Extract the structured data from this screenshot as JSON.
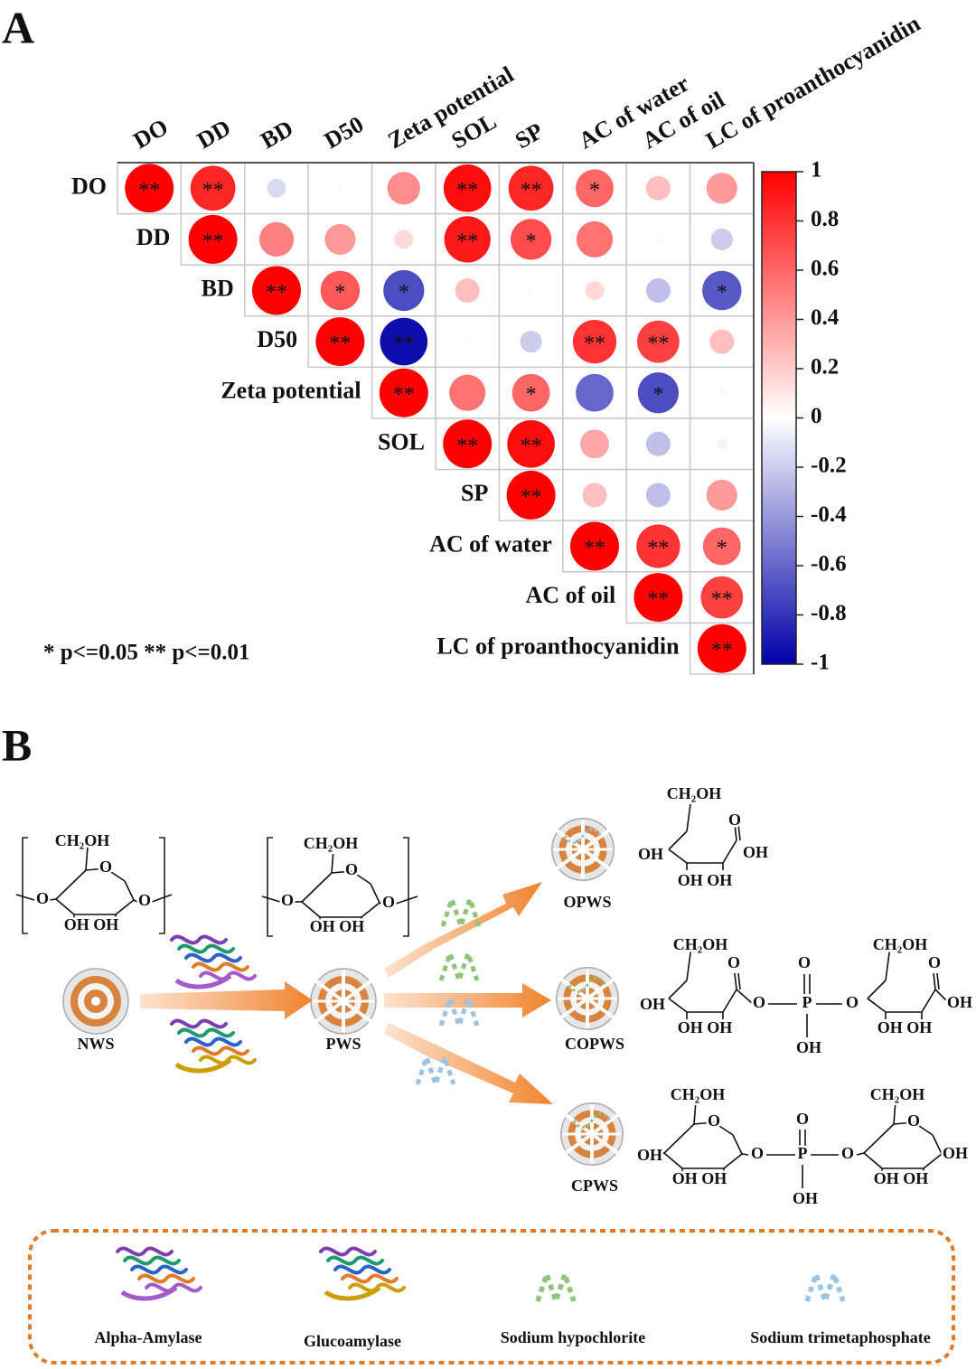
{
  "panel_labels": [
    "A",
    "B"
  ],
  "chart_data": {
    "type": "corrplot",
    "categories": [
      "DO",
      "DD",
      "BD",
      "D50",
      "Zeta potential",
      "SOL",
      "SP",
      "AC of water",
      "AC of oil",
      "LC of proanthocyanidin"
    ],
    "values": [
      [
        1,
        0.85,
        -0.15,
        0.02,
        0.45,
        0.95,
        0.85,
        0.6,
        0.25,
        0.4
      ],
      [
        null,
        1,
        0.5,
        0.4,
        0.15,
        0.9,
        0.7,
        0.55,
        0.02,
        -0.2
      ],
      [
        null,
        null,
        1,
        0.65,
        -0.7,
        0.25,
        0.02,
        0.15,
        -0.25,
        -0.65
      ],
      [
        null,
        null,
        null,
        1,
        -0.95,
        0.02,
        -0.2,
        0.8,
        0.75,
        0.25
      ],
      [
        null,
        null,
        null,
        null,
        1,
        0.55,
        0.6,
        -0.6,
        -0.7,
        0.02
      ],
      [
        null,
        null,
        null,
        null,
        null,
        1,
        0.95,
        0.35,
        -0.25,
        0.05
      ],
      [
        null,
        null,
        null,
        null,
        null,
        null,
        1,
        0.25,
        -0.25,
        0.4
      ],
      [
        null,
        null,
        null,
        null,
        null,
        null,
        null,
        1,
        0.8,
        0.6
      ],
      [
        null,
        null,
        null,
        null,
        null,
        null,
        null,
        null,
        1,
        0.75
      ],
      [
        null,
        null,
        null,
        null,
        null,
        null,
        null,
        null,
        null,
        1
      ]
    ],
    "significance": [
      [
        "**",
        "**",
        null,
        null,
        null,
        "**",
        "**",
        "*",
        null,
        null
      ],
      [
        null,
        "**",
        null,
        null,
        null,
        "**",
        "*",
        null,
        null,
        null
      ],
      [
        null,
        null,
        "**",
        "*",
        "*",
        null,
        null,
        null,
        null,
        "*"
      ],
      [
        null,
        null,
        null,
        "**",
        "**",
        null,
        null,
        "**",
        "**",
        null
      ],
      [
        null,
        null,
        null,
        null,
        "**",
        null,
        "*",
        null,
        "*",
        null
      ],
      [
        null,
        null,
        null,
        null,
        null,
        "**",
        "**",
        null,
        null,
        null
      ],
      [
        null,
        null,
        null,
        null,
        null,
        null,
        "**",
        null,
        null,
        null
      ],
      [
        null,
        null,
        null,
        null,
        null,
        null,
        null,
        "**",
        "**",
        "*"
      ],
      [
        null,
        null,
        null,
        null,
        null,
        null,
        null,
        null,
        "**",
        "**"
      ],
      [
        null,
        null,
        null,
        null,
        null,
        null,
        null,
        null,
        null,
        "**"
      ]
    ],
    "colorscale": [
      "#0000a8",
      "#ffffff",
      "#ff0000"
    ],
    "ylim": [
      -1,
      1
    ],
    "yticks": [
      1,
      0.8,
      0.6,
      0.4,
      0.2,
      0,
      -0.2,
      -0.4,
      -0.6,
      -0.8,
      -1
    ],
    "note": "* p<=0.05  ** p<=0.01"
  },
  "diagram": {
    "nodes": [
      "NWS",
      "PWS",
      "OPWS",
      "COPWS",
      "CPWS"
    ],
    "structures": [
      {
        "atoms": [
          "CH₂OH",
          "O",
          "O",
          "O",
          "OH OH"
        ]
      },
      {
        "atoms": [
          "CH₂OH",
          "O",
          "O",
          "O",
          "OH OH"
        ]
      },
      {
        "atoms": [
          "CH₂OH",
          "O",
          "OH",
          "OH",
          "OH OH"
        ]
      },
      {
        "atoms": [
          "CH₂OH",
          "O",
          "OH",
          "OH OH",
          "O",
          "O",
          "P",
          "O",
          "OH",
          "CH₂OH",
          "O",
          "OH",
          "OH OH"
        ]
      },
      {
        "atoms": [
          "CH₂OH",
          "O",
          "OH",
          "OH OH",
          "O",
          "O",
          "P",
          "O",
          "OH",
          "CH₂OH",
          "O",
          "OH",
          "OH OH"
        ]
      }
    ],
    "legend": [
      "Alpha-Amylase",
      "Glucoamylase",
      "Sodium hypochlorite",
      "Sodium trimetaphosphate"
    ]
  }
}
